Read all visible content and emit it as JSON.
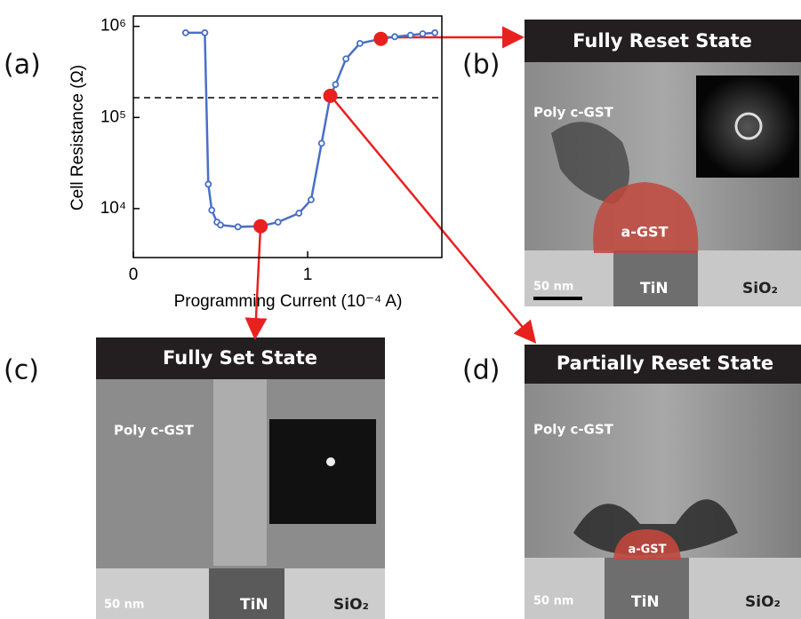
{
  "chart_data": {
    "type": "line",
    "log_y": true,
    "xlabel": "Programming Current (10⁻⁴ A)",
    "ylabel": "Cell Resistance (Ω)",
    "xlim": [
      0,
      1.77
    ],
    "ylim": [
      2900,
      1300000
    ],
    "xticks": [
      0,
      1
    ],
    "yticks": [
      {
        "value": 10000,
        "label": "10⁴"
      },
      {
        "value": 100000,
        "label": "10⁵"
      },
      {
        "value": 1000000,
        "label": "10⁶"
      }
    ],
    "reference_line": 165000,
    "series": [
      {
        "name": "Cell resistance",
        "color": "#4a6fc7",
        "x": [
          0.3,
          0.41,
          0.43,
          0.45,
          0.48,
          0.5,
          0.6,
          0.73,
          0.83,
          0.95,
          1.02,
          1.08,
          1.13,
          1.16,
          1.22,
          1.3,
          1.42,
          1.5,
          1.59,
          1.66,
          1.73
        ],
        "values": [
          850000,
          850000,
          18500,
          9600,
          7100,
          6600,
          6300,
          6400,
          7100,
          8900,
          12500,
          52000,
          173000,
          230000,
          440000,
          650000,
          730000,
          770000,
          800000,
          830000,
          850000
        ]
      }
    ],
    "highlights": {
      "color": "#e8211f",
      "x": [
        0.73,
        1.13,
        1.42
      ],
      "values": [
        6400,
        173000,
        730000
      ]
    }
  },
  "panels": {
    "a": {
      "letter": "(a)"
    },
    "b": {
      "letter": "(b)",
      "title": "Fully Reset State",
      "labels": [
        "Poly c-GST",
        "a-GST",
        "50 nm",
        "TiN",
        "SiO₂"
      ]
    },
    "c": {
      "letter": "(c)",
      "title": "Fully Set State",
      "labels": [
        "Poly c-GST",
        "50 nm",
        "TiN",
        "SiO₂"
      ]
    },
    "d": {
      "letter": "(d)",
      "title": "Partially Reset State",
      "labels": [
        "Poly c-GST",
        "a-GST",
        "50 nm",
        "TiN",
        "SiO₂"
      ]
    }
  }
}
